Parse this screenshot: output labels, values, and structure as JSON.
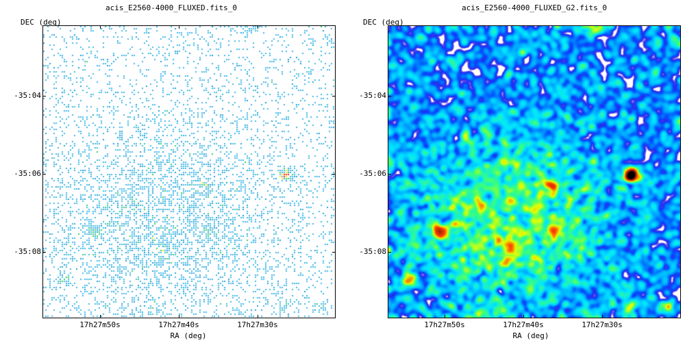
{
  "chart_data": [
    {
      "type": "heatmap",
      "title": "acis_E2560-4000_FLUXED.fits_0",
      "xlabel": "RA (deg)",
      "ylabel": "DEC (deg)",
      "x_ticks": [
        "17h27m50s",
        "17h27m40s",
        "17h27m30s"
      ],
      "y_ticks": [
        "-35:04",
        "-35:06",
        "-35:08"
      ],
      "rendering": "sparse-pixels",
      "colormap": [
        "#ffffff",
        "#20a8d8",
        "#4fc3f7",
        "#33cc66",
        "#ffff00",
        "#ff0000"
      ],
      "bright_spots_deg": [
        {
          "ra": "17h27m30s",
          "dec": "-35:06",
          "color": "#ff3300"
        }
      ]
    },
    {
      "type": "heatmap",
      "title": "acis_E2560-4000_FLUXED_G2.fits_0",
      "xlabel": "RA (deg)",
      "ylabel": "DEC (deg)",
      "x_ticks": [
        "17h27m50s",
        "17h27m40s",
        "17h27m30s"
      ],
      "y_ticks": [
        "-35:04",
        "-35:06",
        "-35:08"
      ],
      "rendering": "smoothed",
      "colormap": [
        "#ffffff",
        "#6a5acd",
        "#0033ff",
        "#00aaff",
        "#00e5ff",
        "#33ff66",
        "#ffff00",
        "#ff3300",
        "#000000"
      ]
    }
  ]
}
